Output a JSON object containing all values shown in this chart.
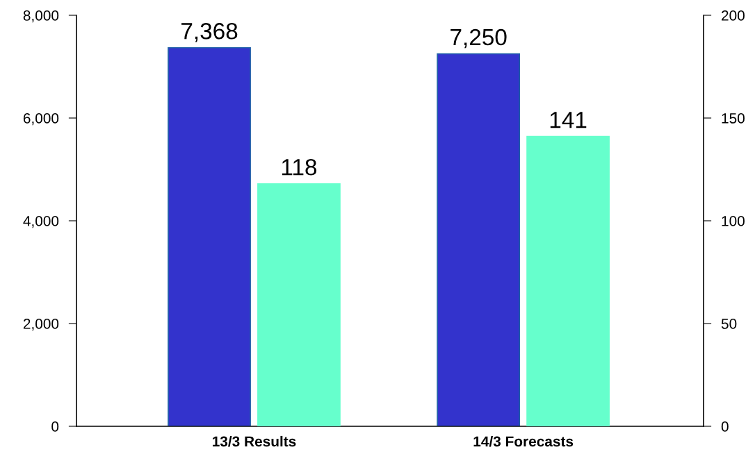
{
  "chart_data": {
    "type": "bar",
    "categories": [
      "13/3 Results",
      "14/3 Forecasts"
    ],
    "series": [
      {
        "color": "#3333cc",
        "values": [
          7368,
          7250
        ],
        "value_labels": [
          "7,368",
          "7,250"
        ]
      },
      {
        "color": "#66ffcc",
        "values": [
          118,
          141
        ],
        "value_labels": [
          "118",
          "141"
        ],
        "axis": "y2"
      }
    ],
    "ylim": [
      0,
      8000
    ],
    "yticks": [
      0,
      {
        "value": 2000,
        "label": "2,000"
      },
      {
        "value": 4000,
        "label": "4,000"
      },
      {
        "value": 6000,
        "label": "6,000"
      },
      {
        "value": 8000,
        "label": "8,000"
      }
    ],
    "y2lim": [
      0,
      200
    ],
    "y2ticks": [
      0,
      50,
      100,
      150,
      200
    ],
    "grid": false,
    "legend": false
  }
}
